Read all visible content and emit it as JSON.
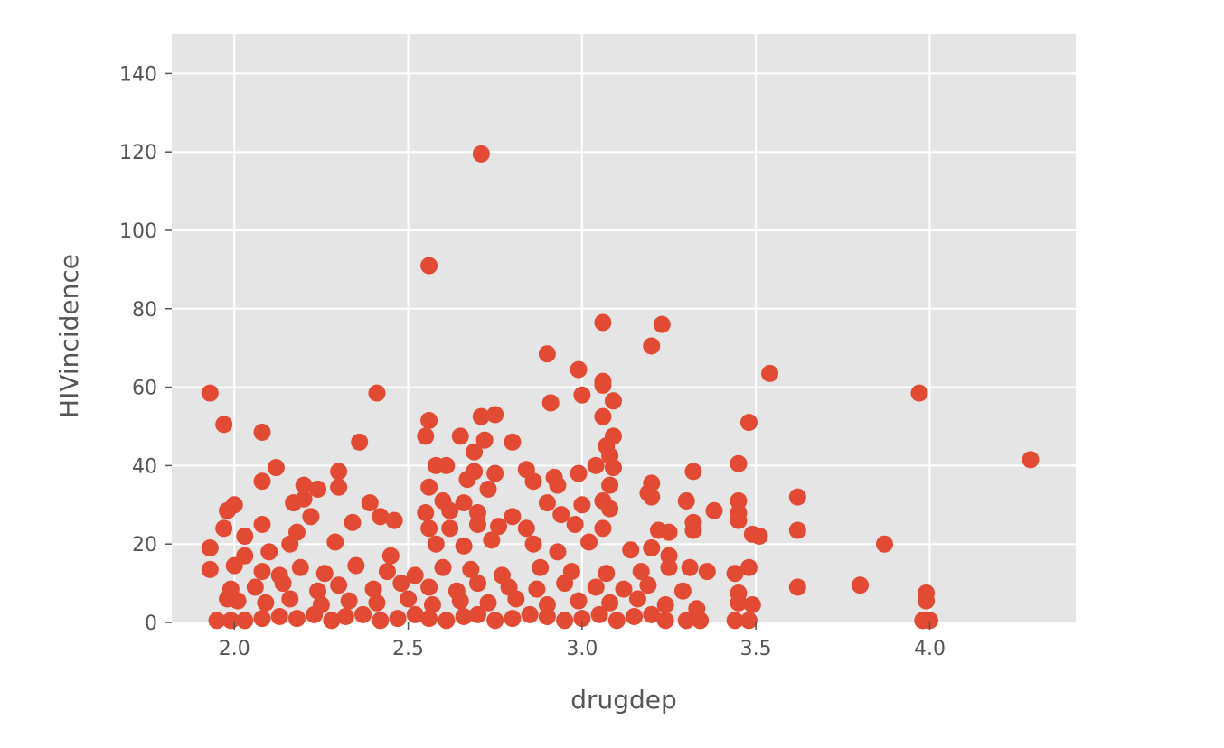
{
  "chart_data": {
    "type": "scatter",
    "title": "",
    "xlabel": "drugdep",
    "ylabel": "HIVincidence",
    "xlim": [
      1.82,
      4.42
    ],
    "ylim": [
      0,
      150
    ],
    "xticks": [
      2.0,
      2.5,
      3.0,
      3.5,
      4.0
    ],
    "xtick_labels": [
      "2.0",
      "2.5",
      "3.0",
      "3.5",
      "4.0"
    ],
    "yticks": [
      0,
      20,
      40,
      60,
      80,
      100,
      120,
      140
    ],
    "ytick_labels": [
      "0",
      "20",
      "40",
      "60",
      "80",
      "100",
      "120",
      "140"
    ],
    "grid": true,
    "style": "ggplot",
    "marker_color": "#E24A33",
    "background_color": "#E5E5E5",
    "points": [
      [
        2.71,
        119.5
      ],
      [
        2.56,
        91
      ],
      [
        3.06,
        76.5
      ],
      [
        3.23,
        76
      ],
      [
        3.2,
        70.5
      ],
      [
        2.9,
        68.5
      ],
      [
        2.99,
        64.5
      ],
      [
        3.54,
        63.5
      ],
      [
        3.06,
        61.5
      ],
      [
        3.06,
        60.5
      ],
      [
        1.93,
        58.5
      ],
      [
        2.41,
        58.5
      ],
      [
        3.97,
        58.5
      ],
      [
        3.0,
        58
      ],
      [
        3.09,
        56.5
      ],
      [
        2.91,
        56
      ],
      [
        3.06,
        52.5
      ],
      [
        2.71,
        52.5
      ],
      [
        2.75,
        53
      ],
      [
        2.56,
        51.5
      ],
      [
        1.97,
        50.5
      ],
      [
        3.48,
        51
      ],
      [
        2.08,
        48.5
      ],
      [
        2.55,
        47.5
      ],
      [
        2.65,
        47.5
      ],
      [
        2.72,
        46.5
      ],
      [
        2.8,
        46
      ],
      [
        2.36,
        46
      ],
      [
        3.09,
        47.5
      ],
      [
        3.07,
        45
      ],
      [
        2.69,
        43.5
      ],
      [
        3.08,
        42.5
      ],
      [
        4.29,
        41.5
      ],
      [
        3.45,
        40.5
      ],
      [
        2.58,
        40
      ],
      [
        2.61,
        40
      ],
      [
        2.12,
        39.5
      ],
      [
        2.3,
        38.5
      ],
      [
        2.69,
        38.5
      ],
      [
        2.75,
        38
      ],
      [
        2.84,
        39
      ],
      [
        3.04,
        40
      ],
      [
        3.09,
        39.5
      ],
      [
        3.32,
        38.5
      ],
      [
        2.67,
        36.5
      ],
      [
        2.86,
        36
      ],
      [
        2.92,
        37
      ],
      [
        2.99,
        38
      ],
      [
        3.2,
        35.5
      ],
      [
        2.08,
        36
      ],
      [
        2.2,
        35
      ],
      [
        2.24,
        34
      ],
      [
        2.3,
        34.5
      ],
      [
        2.56,
        34.5
      ],
      [
        2.73,
        34
      ],
      [
        2.93,
        35
      ],
      [
        3.08,
        35
      ],
      [
        3.19,
        33
      ],
      [
        2.2,
        31.5
      ],
      [
        2.17,
        30.5
      ],
      [
        2.39,
        30.5
      ],
      [
        2.6,
        31
      ],
      [
        2.66,
        30.5
      ],
      [
        2.9,
        30.5
      ],
      [
        3.0,
        30
      ],
      [
        3.06,
        31
      ],
      [
        3.62,
        32
      ],
      [
        3.2,
        32
      ],
      [
        3.3,
        31
      ],
      [
        3.45,
        31
      ],
      [
        1.98,
        28.5
      ],
      [
        2.0,
        30
      ],
      [
        2.08,
        25
      ],
      [
        2.22,
        27
      ],
      [
        2.42,
        27
      ],
      [
        2.46,
        26
      ],
      [
        2.55,
        28
      ],
      [
        2.62,
        28.5
      ],
      [
        2.7,
        28
      ],
      [
        2.8,
        27
      ],
      [
        2.94,
        27.5
      ],
      [
        3.08,
        29
      ],
      [
        3.38,
        28.5
      ],
      [
        3.45,
        28
      ],
      [
        3.45,
        26
      ],
      [
        1.97,
        24
      ],
      [
        2.03,
        22
      ],
      [
        2.18,
        23
      ],
      [
        2.34,
        25.5
      ],
      [
        2.56,
        24
      ],
      [
        2.62,
        24
      ],
      [
        2.7,
        25
      ],
      [
        2.76,
        24.5
      ],
      [
        2.84,
        24
      ],
      [
        2.98,
        25
      ],
      [
        3.06,
        24
      ],
      [
        3.22,
        23.5
      ],
      [
        3.25,
        23
      ],
      [
        3.32,
        23.5
      ],
      [
        3.32,
        25.5
      ],
      [
        3.49,
        22.5
      ],
      [
        3.51,
        22
      ],
      [
        3.62,
        23.5
      ],
      [
        1.93,
        19
      ],
      [
        2.03,
        17
      ],
      [
        2.1,
        18
      ],
      [
        2.16,
        20
      ],
      [
        2.29,
        20.5
      ],
      [
        2.45,
        17
      ],
      [
        2.58,
        20
      ],
      [
        2.66,
        19.5
      ],
      [
        2.74,
        21
      ],
      [
        2.86,
        20
      ],
      [
        2.93,
        18
      ],
      [
        3.02,
        20.5
      ],
      [
        3.14,
        18.5
      ],
      [
        3.2,
        19
      ],
      [
        3.25,
        17
      ],
      [
        3.87,
        20
      ],
      [
        1.93,
        13.5
      ],
      [
        2.0,
        14.5
      ],
      [
        2.08,
        13
      ],
      [
        2.13,
        12
      ],
      [
        2.19,
        14
      ],
      [
        2.26,
        12.5
      ],
      [
        2.35,
        14.5
      ],
      [
        2.44,
        13
      ],
      [
        2.52,
        12
      ],
      [
        2.6,
        14
      ],
      [
        2.68,
        13.5
      ],
      [
        2.77,
        12
      ],
      [
        2.88,
        14
      ],
      [
        2.97,
        13
      ],
      [
        3.07,
        12.5
      ],
      [
        3.17,
        13
      ],
      [
        3.25,
        14
      ],
      [
        3.31,
        14
      ],
      [
        3.36,
        13
      ],
      [
        3.44,
        12.5
      ],
      [
        3.48,
        14
      ],
      [
        1.99,
        8.5
      ],
      [
        2.06,
        9
      ],
      [
        2.14,
        10
      ],
      [
        2.24,
        8
      ],
      [
        2.3,
        9.5
      ],
      [
        2.4,
        8.5
      ],
      [
        2.48,
        10
      ],
      [
        2.56,
        9
      ],
      [
        2.64,
        8
      ],
      [
        2.7,
        10
      ],
      [
        2.79,
        9
      ],
      [
        2.87,
        8.5
      ],
      [
        2.95,
        10
      ],
      [
        3.04,
        9
      ],
      [
        3.12,
        8.5
      ],
      [
        3.19,
        9.5
      ],
      [
        3.29,
        8
      ],
      [
        3.45,
        7.5
      ],
      [
        3.62,
        9
      ],
      [
        3.8,
        9.5
      ],
      [
        3.99,
        7.5
      ],
      [
        1.98,
        6
      ],
      [
        2.01,
        5.5
      ],
      [
        2.09,
        5
      ],
      [
        2.16,
        6
      ],
      [
        2.25,
        4.5
      ],
      [
        2.33,
        5.5
      ],
      [
        2.41,
        5
      ],
      [
        2.5,
        6
      ],
      [
        2.57,
        4.5
      ],
      [
        2.65,
        5.5
      ],
      [
        2.73,
        5
      ],
      [
        2.81,
        6
      ],
      [
        2.9,
        4.5
      ],
      [
        2.99,
        5.5
      ],
      [
        3.08,
        5
      ],
      [
        3.16,
        6
      ],
      [
        3.24,
        4.5
      ],
      [
        3.45,
        5
      ],
      [
        3.49,
        4.5
      ],
      [
        3.99,
        5.5
      ],
      [
        3.33,
        3.5
      ],
      [
        1.95,
        0.5
      ],
      [
        1.99,
        0.5
      ],
      [
        2.03,
        0.5
      ],
      [
        2.08,
        1
      ],
      [
        2.13,
        1.5
      ],
      [
        2.18,
        1
      ],
      [
        2.23,
        2
      ],
      [
        2.28,
        0.5
      ],
      [
        2.32,
        1.5
      ],
      [
        2.37,
        2
      ],
      [
        2.42,
        0.5
      ],
      [
        2.47,
        1
      ],
      [
        2.52,
        2
      ],
      [
        2.56,
        1
      ],
      [
        2.61,
        0.5
      ],
      [
        2.66,
        1.5
      ],
      [
        2.7,
        2
      ],
      [
        2.75,
        0.5
      ],
      [
        2.8,
        1
      ],
      [
        2.85,
        2
      ],
      [
        2.9,
        1.5
      ],
      [
        2.95,
        0.5
      ],
      [
        3.0,
        1
      ],
      [
        3.05,
        2
      ],
      [
        3.1,
        0.5
      ],
      [
        3.15,
        1.5
      ],
      [
        3.2,
        2
      ],
      [
        3.24,
        0.5
      ],
      [
        3.3,
        0.5
      ],
      [
        3.34,
        0.5
      ],
      [
        3.44,
        0.5
      ],
      [
        3.48,
        0.5
      ],
      [
        3.98,
        0.5
      ],
      [
        4.0,
        0.5
      ]
    ]
  }
}
